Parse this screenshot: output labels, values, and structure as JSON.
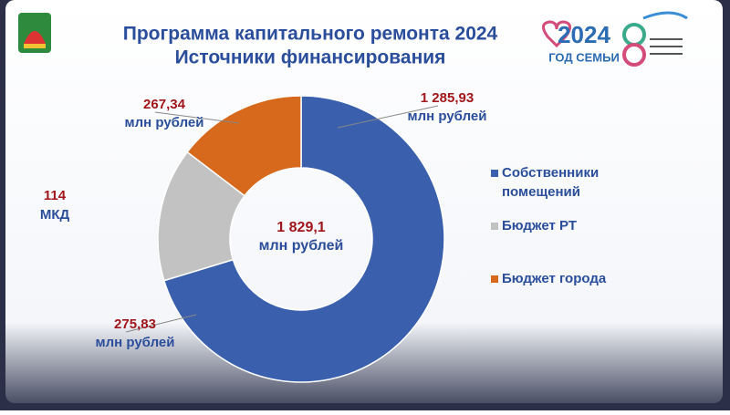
{
  "chart_data": {
    "type": "doughnut",
    "title": [
      "Программа капитального ремонта 2024",
      "Источники финансирования"
    ],
    "categories": [
      "Собственники помещений",
      "Бюджет РТ",
      "Бюджет города"
    ],
    "values": [
      1285.93,
      275.83,
      267.34
    ],
    "value_labels": [
      "1 285,93",
      "275,83",
      "267,34"
    ],
    "unit": "млн рублей",
    "colors": [
      "#3a60ad",
      "#c2c2c2",
      "#d6691c"
    ],
    "total": 1829.1,
    "total_label": "1 829,1",
    "annotation": [
      "114",
      "МКД"
    ],
    "logo_texts": [
      "2024",
      "ГОД СЕМЬИ"
    ],
    "legend": "right"
  }
}
